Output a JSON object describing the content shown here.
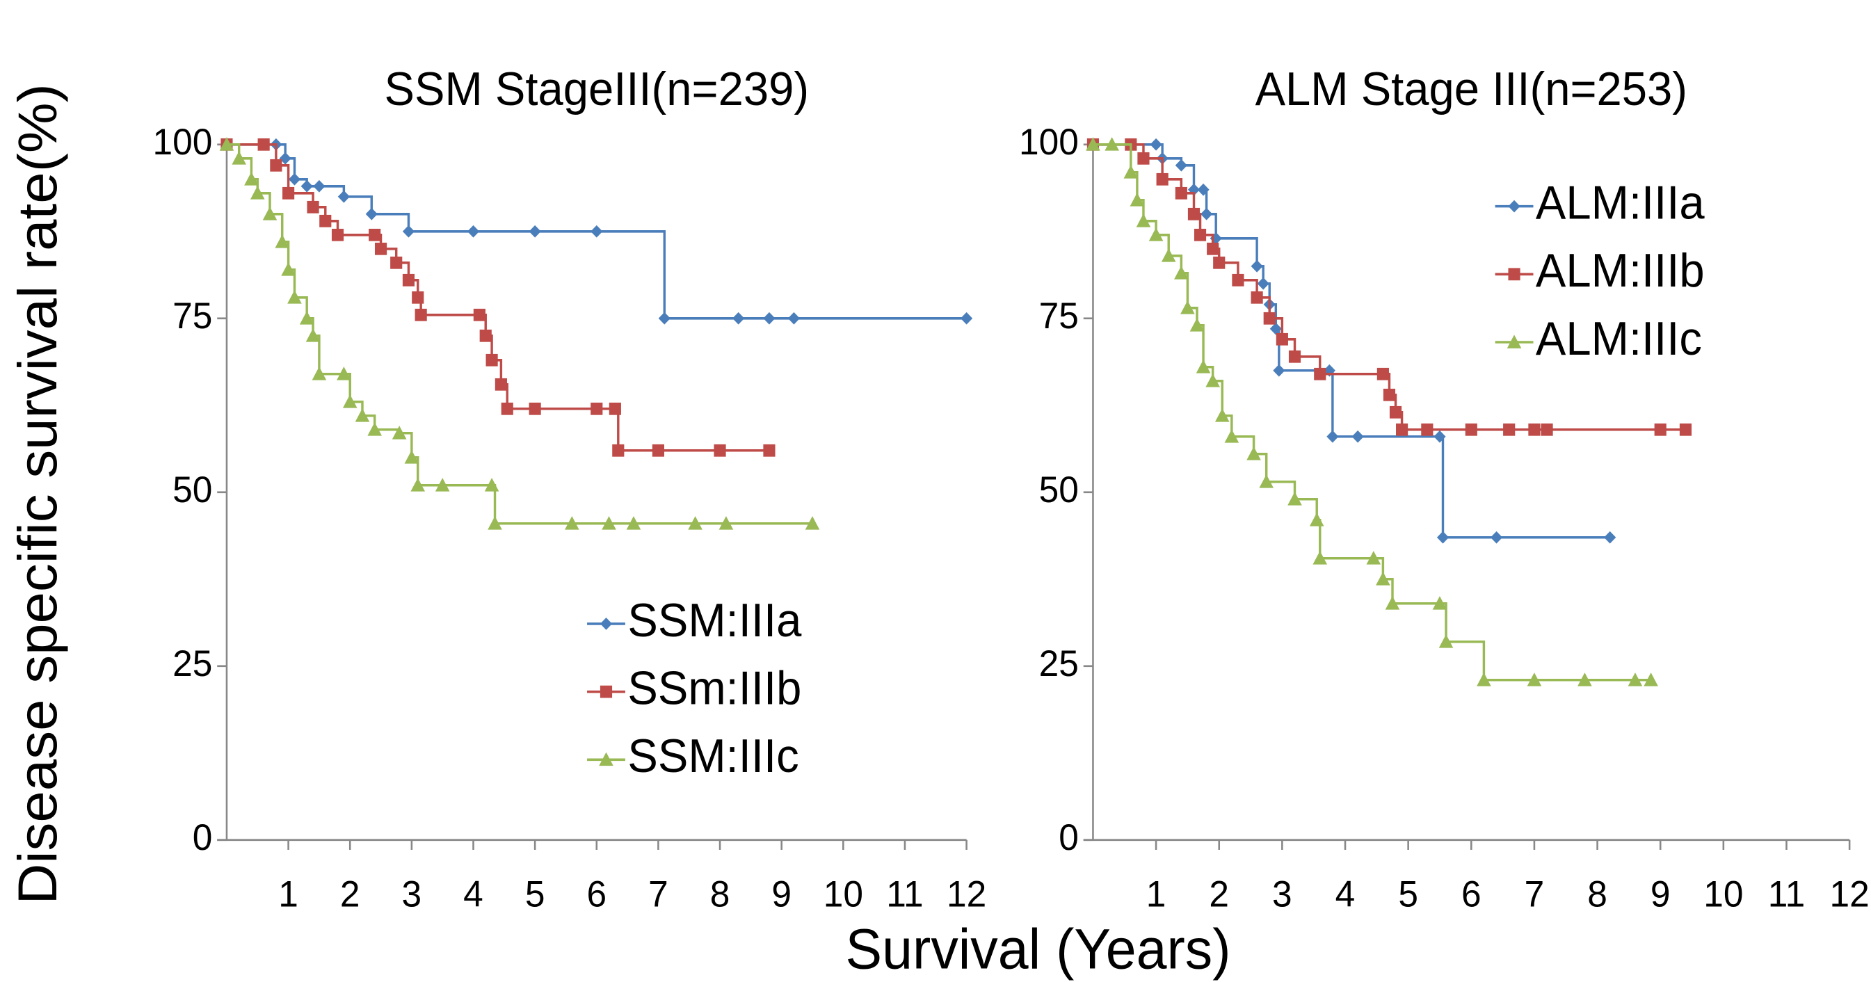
{
  "ylabel": "Disease specific survival rate(%)",
  "xlabel": "Survival (Years)",
  "chart_data": [
    {
      "type": "step",
      "title": "SSM StageIII(n=239)",
      "legend": "lower right",
      "xlim": [
        0,
        12
      ],
      "xticks": [
        1,
        2,
        3,
        4,
        5,
        6,
        7,
        8,
        9,
        10,
        11,
        12
      ],
      "ylim": [
        0,
        100
      ],
      "yticks": [
        0,
        25,
        50,
        75,
        100
      ],
      "series": [
        {
          "name": "SSM:IIIa",
          "color": "#4a7ebb",
          "marker": "diamond",
          "x": [
            0,
            0.8,
            0.95,
            1.1,
            1.3,
            1.5,
            1.9,
            2.35,
            2.95,
            4.0,
            5.0,
            6.0,
            7.1,
            8.3,
            8.8,
            9.2,
            12
          ],
          "values": [
            100,
            100,
            98,
            95,
            94,
            94,
            92.5,
            90,
            87.5,
            87.5,
            87.5,
            87.5,
            75,
            75,
            75,
            75,
            75
          ]
        },
        {
          "name": "SSm:IIIb",
          "color": "#be4b48",
          "marker": "square",
          "x": [
            0,
            0.6,
            0.8,
            1.0,
            1.4,
            1.6,
            1.8,
            2.4,
            2.5,
            2.75,
            2.95,
            3.1,
            3.15,
            4.1,
            4.2,
            4.3,
            4.45,
            4.55,
            5.0,
            6.0,
            6.3,
            6.35,
            7.0,
            8.0,
            8.8
          ],
          "values": [
            100,
            100,
            97,
            93,
            91,
            89,
            87,
            87,
            85,
            83,
            80.5,
            78,
            75.5,
            75.5,
            72.5,
            69,
            65.5,
            62,
            62,
            62,
            62,
            56,
            56,
            56,
            56
          ]
        },
        {
          "name": "SSM:IIIc",
          "color": "#98b954",
          "marker": "triangle",
          "x": [
            0,
            0.2,
            0.4,
            0.5,
            0.7,
            0.9,
            1.0,
            1.1,
            1.3,
            1.4,
            1.5,
            1.9,
            2.0,
            2.2,
            2.4,
            2.8,
            3.0,
            3.1,
            3.5,
            4.3,
            4.35,
            5.6,
            6.2,
            6.6,
            7.6,
            8.1,
            9.5
          ],
          "values": [
            100,
            98,
            95,
            93,
            90,
            86,
            82,
            78,
            75,
            72.5,
            67,
            67,
            63,
            61,
            59,
            58.5,
            55,
            51,
            51,
            51,
            45.5,
            45.5,
            45.5,
            45.5,
            45.5,
            45.5,
            45.5
          ]
        }
      ]
    },
    {
      "type": "step",
      "title": "ALM Stage III(n=253)",
      "legend": "upper right",
      "xlim": [
        0,
        12
      ],
      "xticks": [
        1,
        2,
        3,
        4,
        5,
        6,
        7,
        8,
        9,
        10,
        11,
        12
      ],
      "ylim": [
        0,
        100
      ],
      "yticks": [
        0,
        25,
        50,
        75,
        100
      ],
      "series": [
        {
          "name": "ALM:IIIa",
          "color": "#4a7ebb",
          "marker": "diamond",
          "x": [
            0,
            1.0,
            1.1,
            1.4,
            1.6,
            1.75,
            1.8,
            1.95,
            2.6,
            2.7,
            2.8,
            2.9,
            2.95,
            3.75,
            3.8,
            4.2,
            5.5,
            5.55,
            6.4,
            8.2
          ],
          "values": [
            100,
            100,
            98,
            97,
            93.5,
            93.5,
            90,
            86.5,
            82.5,
            80,
            77,
            73.5,
            67.5,
            67.5,
            58,
            58,
            58,
            43.5,
            43.5,
            43.5
          ]
        },
        {
          "name": "ALM:IIIb",
          "color": "#be4b48",
          "marker": "square",
          "x": [
            0,
            0.6,
            0.8,
            1.1,
            1.4,
            1.6,
            1.7,
            1.9,
            2.0,
            2.3,
            2.6,
            2.8,
            3.0,
            3.2,
            3.6,
            4.6,
            4.7,
            4.8,
            4.9,
            5.3,
            6.0,
            6.6,
            7.0,
            7.2,
            9.0,
            9.4
          ],
          "values": [
            100,
            100,
            98,
            95,
            93,
            90,
            87,
            85,
            83,
            80.5,
            78,
            75,
            72,
            69.5,
            67,
            67,
            64,
            61.5,
            59,
            59,
            59,
            59,
            59,
            59,
            59,
            59
          ]
        },
        {
          "name": "ALM:IIIc",
          "color": "#98b954",
          "marker": "triangle",
          "x": [
            0,
            0.3,
            0.6,
            0.7,
            0.8,
            1.0,
            1.2,
            1.4,
            1.5,
            1.65,
            1.75,
            1.9,
            2.05,
            2.2,
            2.55,
            2.75,
            3.2,
            3.55,
            3.6,
            4.45,
            4.6,
            4.75,
            5.5,
            5.6,
            6.2,
            7.0,
            7.8,
            8.6,
            8.85
          ],
          "values": [
            100,
            100,
            96,
            92,
            89,
            87,
            84,
            81.5,
            76.5,
            74,
            68,
            66,
            61,
            58,
            55.5,
            51.5,
            49,
            46,
            40.5,
            40.5,
            37.5,
            34,
            34,
            28.5,
            23,
            23,
            23,
            23,
            23
          ]
        }
      ]
    }
  ]
}
